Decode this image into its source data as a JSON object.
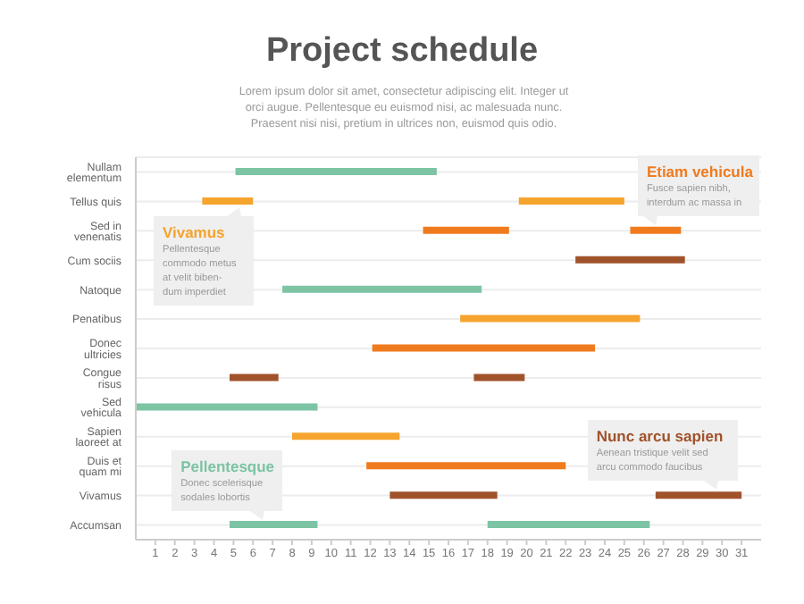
{
  "chart_data": {
    "type": "bar",
    "orientation": "horizontal",
    "title": "Project schedule",
    "subtitle": "Lorem ipsum dolor sit amet, consectetur adipiscing elit. Integer ut orci augue. Pellentesque eu euismod nisi, ac malesuada nunc. Praesent nisi nisi, pretium in ultrices non, euismod quis odio.",
    "categories": [
      "Nullam elementum",
      "Tellus quis",
      "Sed in venenatis",
      "Cum sociis",
      "Natoque",
      "Penatibus",
      "Donec ultricies",
      "Congue risus",
      "Sed vehicula",
      "Sapien laoreet at",
      "Duis et quam mi",
      "Vivamus",
      "Accumsan"
    ],
    "series": [
      {
        "base": [
          5.1,
          3.4,
          14.7,
          22.5,
          7.5,
          16.6,
          12.1,
          4.8,
          0,
          8.0,
          11.8,
          13.0,
          4.8
        ],
        "values": [
          10.3,
          2.6,
          4.4,
          5.6,
          10.2,
          9.2,
          11.4,
          2.5,
          9.3,
          5.5,
          10.2,
          5.5,
          4.5
        ],
        "colors": [
          "#7cc4a4",
          "#f5a42e",
          "#ef7b1e",
          "#a0532b",
          "#7cc4a4",
          "#f5a42e",
          "#ef7b1e",
          "#a0532b",
          "#7cc4a4",
          "#f5a42e",
          "#ef7b1e",
          "#a0532b",
          "#7cc4a4"
        ]
      },
      {
        "base": [
          null,
          19.6,
          25.3,
          null,
          null,
          null,
          null,
          17.3,
          null,
          null,
          null,
          26.6,
          18.0
        ],
        "values": [
          null,
          5.4,
          2.6,
          null,
          null,
          null,
          null,
          2.6,
          null,
          null,
          null,
          4.4,
          8.3
        ],
        "colors": [
          "#7cc4a4",
          "#f5a42e",
          "#ef7b1e",
          "#a0532b",
          "#7cc4a4",
          "#f5a42e",
          "#ef7b1e",
          "#a0532b",
          "#7cc4a4",
          "#f5a42e",
          "#ef7b1e",
          "#a0532b",
          "#7cc4a4"
        ]
      }
    ],
    "xlim": [
      0,
      32
    ],
    "xticks": [
      1,
      2,
      3,
      4,
      5,
      6,
      7,
      8,
      9,
      10,
      11,
      12,
      13,
      14,
      15,
      16,
      17,
      18,
      19,
      20,
      21,
      22,
      23,
      24,
      25,
      26,
      27,
      28,
      29,
      30,
      31
    ],
    "grid": "y",
    "legend": false,
    "annotations": [
      {
        "text": "Etiam vehicula\nFusce sapien nibh,\ninterdum ac massa in",
        "x": 26.6,
        "y": "Sed in venenatis"
      },
      {
        "text": "Vivamus\nPellentesque\ncommodo metus\nat velit biben-\ndum imperdiet",
        "x": 5.3,
        "y": "Tellus quis"
      },
      {
        "text": "Pellentesque\nDonec scelerisque\nsodales lobortis",
        "x": 6.5,
        "y": "Accumsan"
      },
      {
        "text": "Nunc arcu sapien\nAenean tristique velit sed\narcu commodo faucibus",
        "x": 29.7,
        "y": "Vivamus"
      }
    ]
  }
}
